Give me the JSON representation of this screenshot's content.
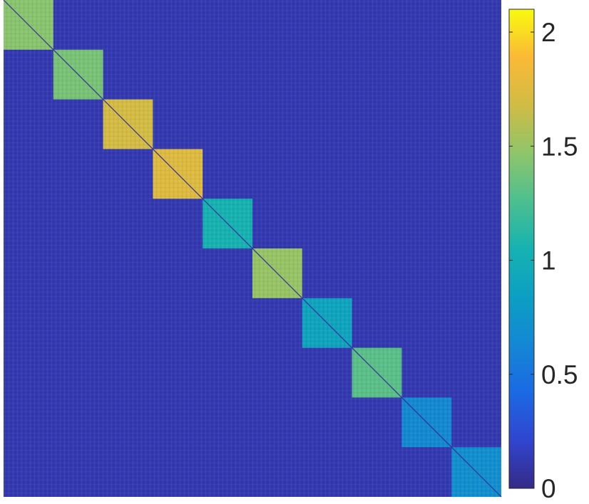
{
  "chart_data": {
    "type": "heatmap",
    "title": "",
    "xlabel": "",
    "ylabel": "",
    "grid": false,
    "matrix_size": 10,
    "blocks": [
      {
        "index": 1,
        "value": 1.45
      },
      {
        "index": 2,
        "value": 1.4
      },
      {
        "index": 3,
        "value": 1.7
      },
      {
        "index": 4,
        "value": 1.75
      },
      {
        "index": 5,
        "value": 1.05
      },
      {
        "index": 6,
        "value": 1.5
      },
      {
        "index": 7,
        "value": 0.9
      },
      {
        "index": 8,
        "value": 1.3
      },
      {
        "index": 9,
        "value": 0.65
      },
      {
        "index": 10,
        "value": 0.7
      }
    ],
    "off_diagonal_value": 0.12,
    "diagonal_line_value": 0.05,
    "colorbar": {
      "colormap": "parula",
      "range": [
        0,
        2.1
      ],
      "ticks": [
        0,
        0.5,
        1,
        1.5,
        2
      ],
      "tick_labels": [
        "0",
        "0.5",
        "1",
        "1.5",
        "2"
      ],
      "placement": "right"
    }
  }
}
